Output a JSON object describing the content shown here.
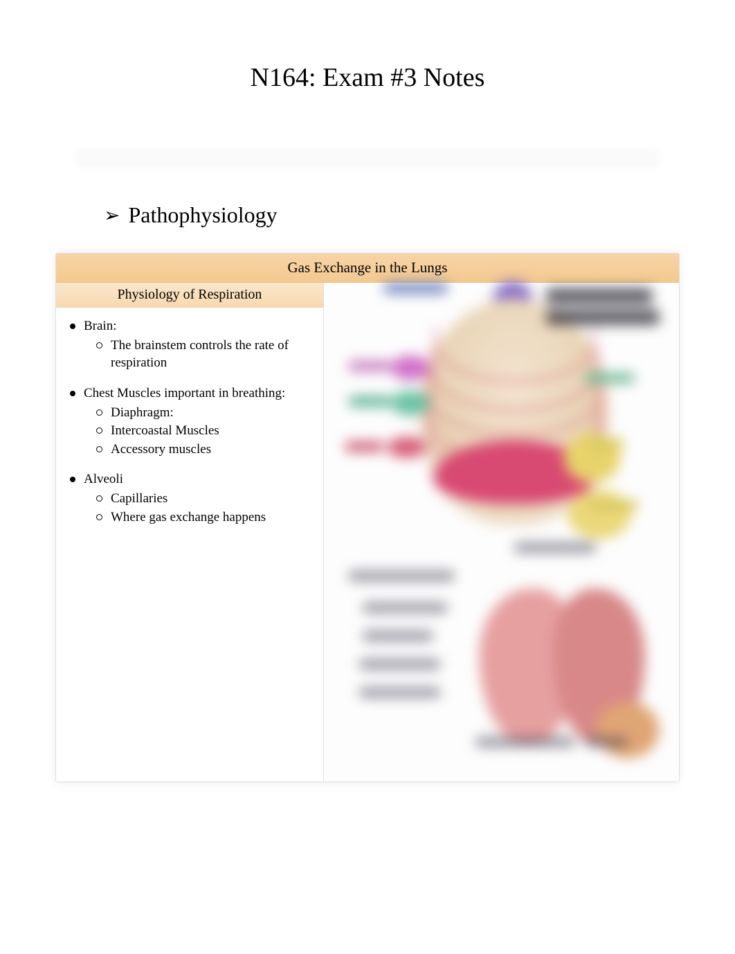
{
  "title": "N164: Exam #3 Notes",
  "section": {
    "arrow": "➢",
    "heading": "Pathophysiology"
  },
  "box": {
    "header": "Gas Exchange in the Lungs",
    "subheader": "Physiology of Respiration",
    "header_bg_top": "#f7d4a8",
    "header_bg_bottom": "#f3c98f",
    "subheader_bg_top": "#fbe7cc",
    "subheader_bg_bottom": "#f7d9af"
  },
  "notes": [
    {
      "label": "Brain:",
      "sub": [
        "The brainstem controls the rate of respiration"
      ]
    },
    {
      "label": "Chest Muscles important in breathing:",
      "sub": [
        "Diaphragm:",
        "Intercoastal Muscles",
        "Accessory muscles"
      ]
    },
    {
      "label": "Alveoli",
      "sub": [
        "Capillaries",
        "Where gas exchange happens"
      ]
    }
  ],
  "illustration": {
    "top_region": "muscles-of-respiration-diagram",
    "bottom_region": "lung-alveoli-diagram",
    "colors": {
      "brain": "#8a6fc4",
      "rib_outline": "#c83c5a",
      "ribcage_fill": "#e8d3b5",
      "diaphragm": "#d84a72",
      "accessory_yellow": "#e8d36a",
      "scalene_pink": "#d070c8",
      "intercostal_green": "#6cc2a5",
      "lung_light": "#e6a0a0",
      "lung_dark": "#d88888",
      "alveoli": "#e0a574"
    }
  }
}
